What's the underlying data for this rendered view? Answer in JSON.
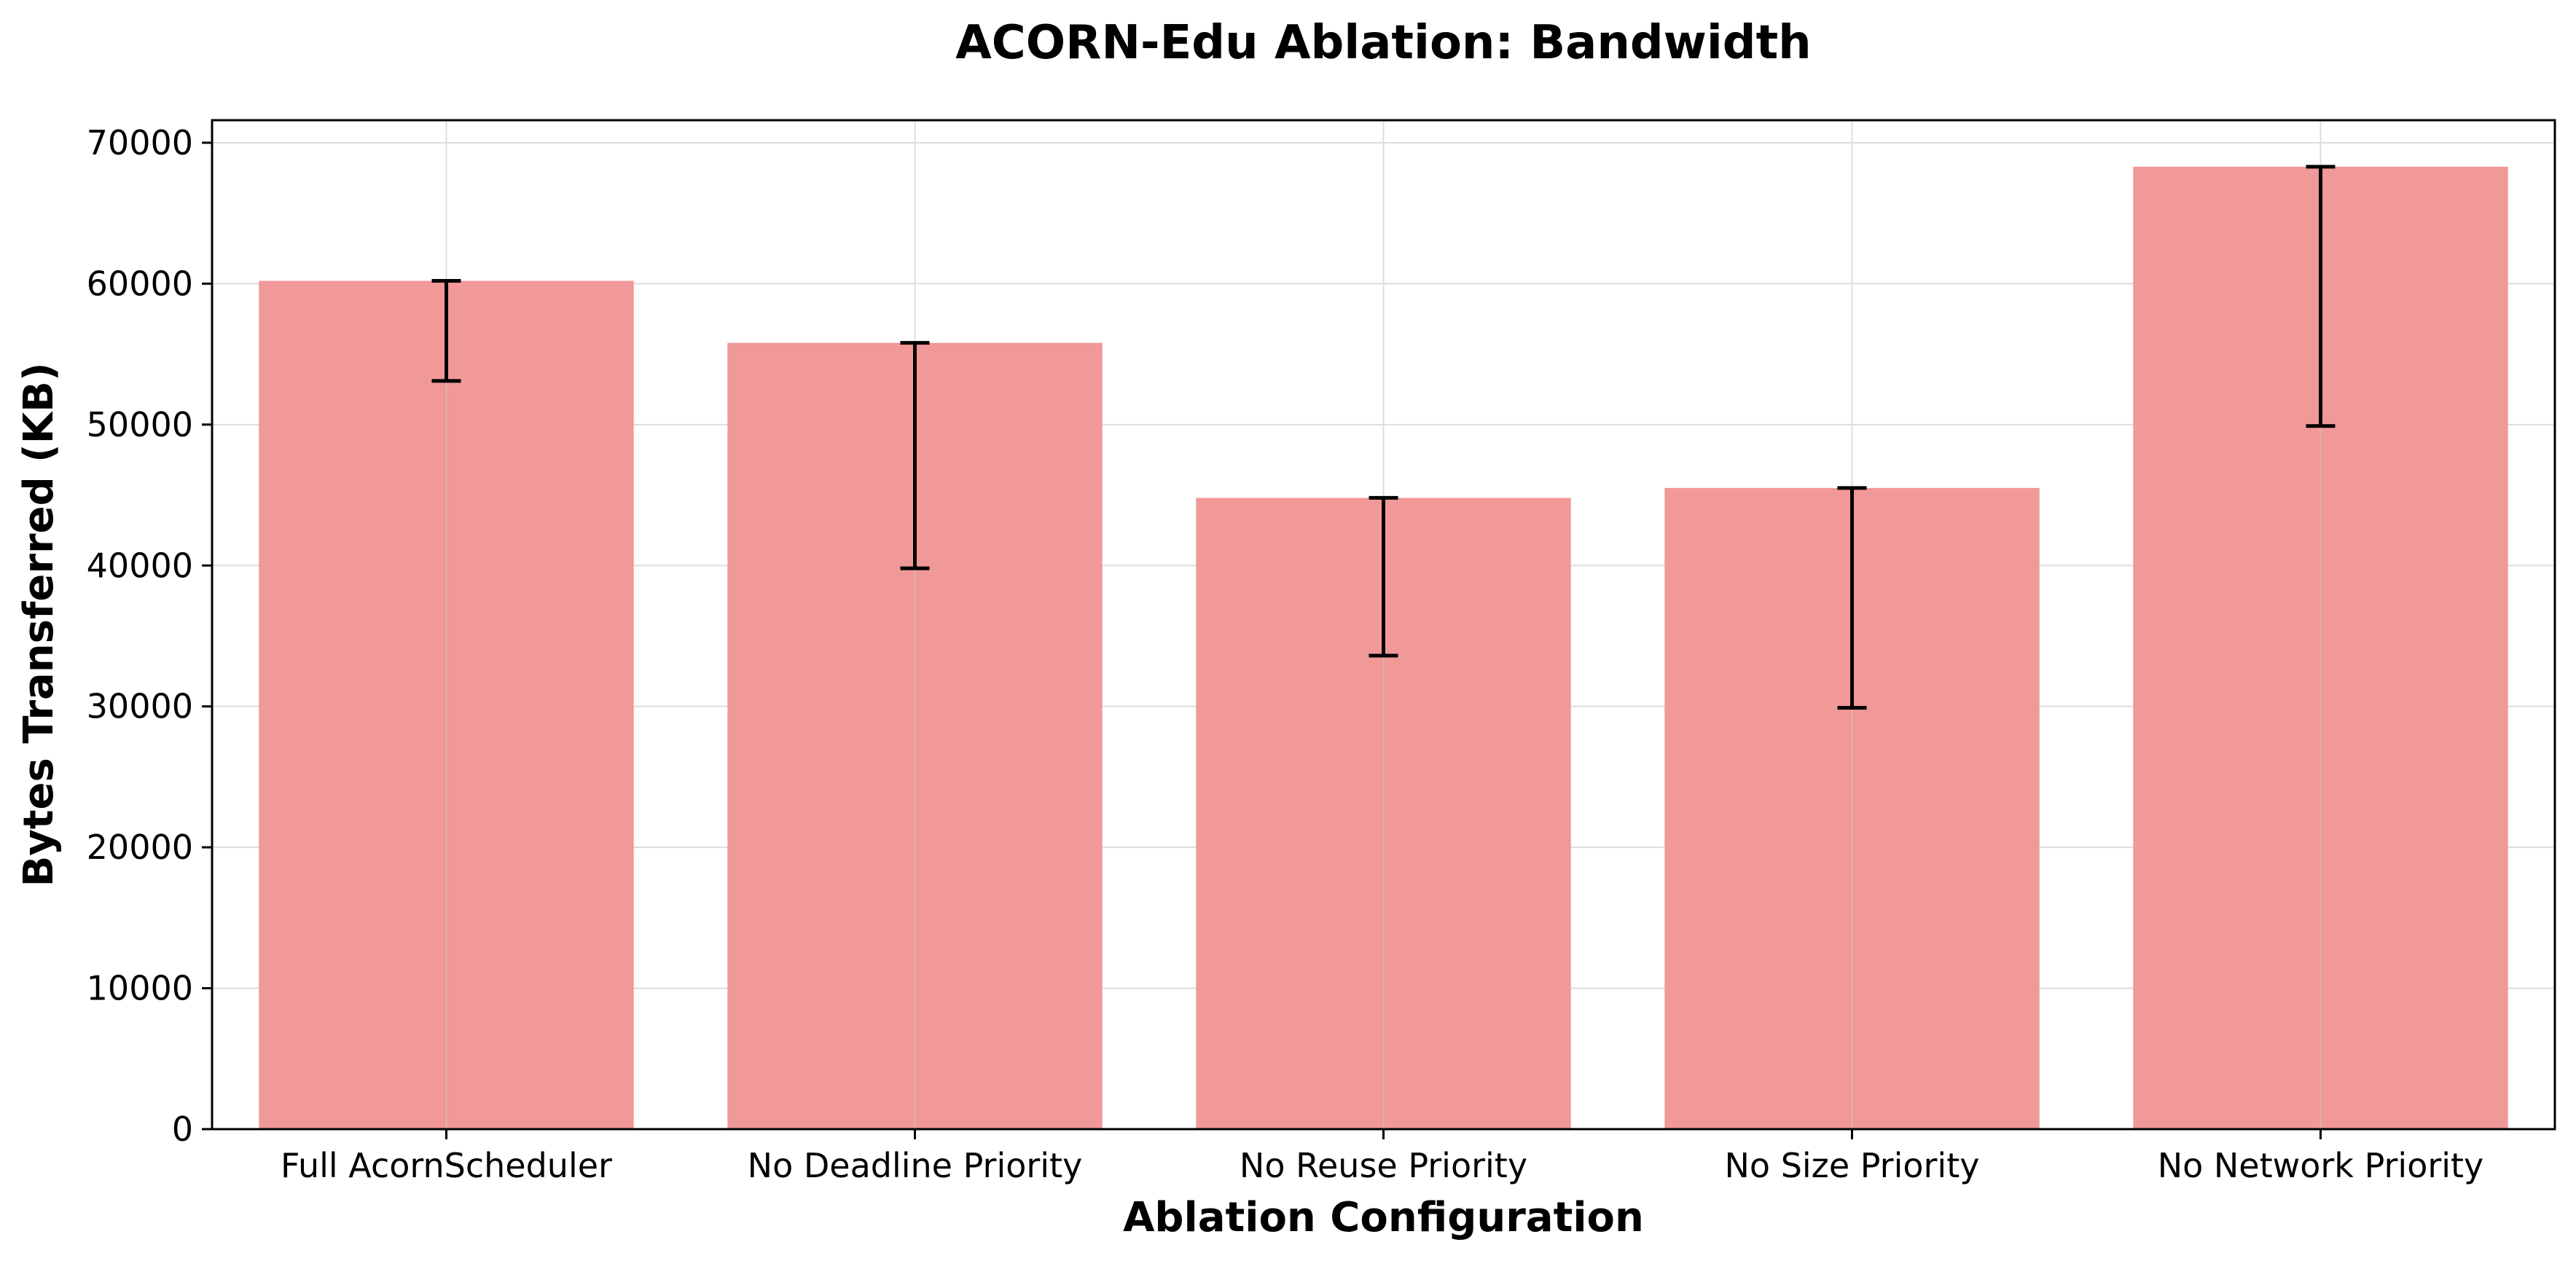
{
  "chart_data": {
    "type": "bar",
    "title": "ACORN-Edu Ablation: Bandwidth",
    "xlabel": "Ablation Configuration",
    "ylabel": "Bytes Transferred (KB)",
    "categories": [
      "Full AcornScheduler",
      "No Deadline Priority",
      "No Reuse Priority",
      "No Size Priority",
      "No Network Priority"
    ],
    "values": [
      60200,
      55800,
      44800,
      45500,
      68300
    ],
    "error_lower": [
      53100,
      39800,
      33600,
      29900,
      49900
    ],
    "error_upper": [
      60200,
      55800,
      44800,
      45500,
      68300
    ],
    "ylim": [
      0,
      71600
    ],
    "yticks": [
      0,
      10000,
      20000,
      30000,
      40000,
      50000,
      60000,
      70000
    ],
    "grid": true,
    "bar_color": "#f19898",
    "errorbar_color": "#000000",
    "grid_color": "#dddddd"
  }
}
